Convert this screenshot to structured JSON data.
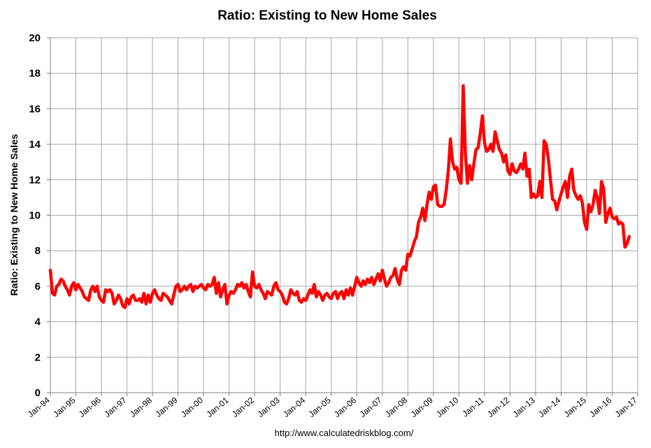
{
  "chart_data": {
    "type": "line",
    "title": "Ratio: Existing to New Home Sales",
    "ylabel": "Ratio: Existing to New Home Sales",
    "xlabel": "",
    "ylim": [
      0,
      20
    ],
    "yticks": [
      "0",
      "2",
      "4",
      "6",
      "8",
      "10",
      "12",
      "14",
      "16",
      "18",
      "20"
    ],
    "xlim": [
      "1994-01",
      "2017-01"
    ],
    "xticks": [
      "Jan-94",
      "Jan-95",
      "Jan-96",
      "Jan-97",
      "Jan-98",
      "Jan-99",
      "Jan-00",
      "Jan-01",
      "Jan-02",
      "Jan-03",
      "Jan-04",
      "Jan-05",
      "Jan-06",
      "Jan-07",
      "Jan-08",
      "Jan-09",
      "Jan-10",
      "Jan-11",
      "Jan-12",
      "Jan-13",
      "Jan-14",
      "Jan-15",
      "Jan-16",
      "Jan-17"
    ],
    "grid": true,
    "legend": "none",
    "series": [
      {
        "color": "#ff0000",
        "points": [
          [
            "1994-01",
            6.9
          ],
          [
            "1994-02",
            5.6
          ],
          [
            "1994-03",
            5.5
          ],
          [
            "1994-04",
            6.0
          ],
          [
            "1994-05",
            6.1
          ],
          [
            "1994-06",
            6.4
          ],
          [
            "1994-07",
            6.3
          ],
          [
            "1994-08",
            6.0
          ],
          [
            "1994-09",
            5.8
          ],
          [
            "1994-10",
            5.5
          ],
          [
            "1994-11",
            6.0
          ],
          [
            "1994-12",
            6.2
          ],
          [
            "1995-01",
            5.8
          ],
          [
            "1995-02",
            6.1
          ],
          [
            "1995-03",
            5.9
          ],
          [
            "1995-04",
            5.7
          ],
          [
            "1995-05",
            5.4
          ],
          [
            "1995-06",
            5.3
          ],
          [
            "1995-07",
            5.2
          ],
          [
            "1995-08",
            5.8
          ],
          [
            "1995-09",
            6.0
          ],
          [
            "1995-10",
            5.7
          ],
          [
            "1995-11",
            6.0
          ],
          [
            "1995-12",
            5.4
          ],
          [
            "1996-01",
            5.2
          ],
          [
            "1996-02",
            5.1
          ],
          [
            "1996-03",
            5.8
          ],
          [
            "1996-04",
            5.7
          ],
          [
            "1996-05",
            5.8
          ],
          [
            "1996-06",
            5.6
          ],
          [
            "1996-07",
            5.0
          ],
          [
            "1996-08",
            5.2
          ],
          [
            "1996-09",
            5.5
          ],
          [
            "1996-10",
            5.3
          ],
          [
            "1996-11",
            4.9
          ],
          [
            "1996-12",
            4.8
          ],
          [
            "1997-01",
            5.3
          ],
          [
            "1997-02",
            5.0
          ],
          [
            "1997-03",
            5.4
          ],
          [
            "1997-04",
            5.5
          ],
          [
            "1997-05",
            5.2
          ],
          [
            "1997-06",
            5.2
          ],
          [
            "1997-07",
            5.3
          ],
          [
            "1997-08",
            5.1
          ],
          [
            "1997-09",
            5.6
          ],
          [
            "1997-10",
            5.0
          ],
          [
            "1997-11",
            5.5
          ],
          [
            "1997-12",
            5.1
          ],
          [
            "1998-01",
            5.6
          ],
          [
            "1998-02",
            5.8
          ],
          [
            "1998-03",
            5.5
          ],
          [
            "1998-04",
            5.3
          ],
          [
            "1998-05",
            5.2
          ],
          [
            "1998-06",
            5.6
          ],
          [
            "1998-07",
            5.5
          ],
          [
            "1998-08",
            5.4
          ],
          [
            "1998-09",
            5.2
          ],
          [
            "1998-10",
            5.0
          ],
          [
            "1998-11",
            5.5
          ],
          [
            "1998-12",
            6.0
          ],
          [
            "1999-01",
            6.1
          ],
          [
            "1999-02",
            5.7
          ],
          [
            "1999-03",
            5.8
          ],
          [
            "1999-04",
            6.0
          ],
          [
            "1999-05",
            5.8
          ],
          [
            "1999-06",
            6.0
          ],
          [
            "1999-07",
            6.1
          ],
          [
            "1999-08",
            5.7
          ],
          [
            "1999-09",
            6.0
          ],
          [
            "1999-10",
            5.9
          ],
          [
            "1999-11",
            6.0
          ],
          [
            "1999-12",
            6.1
          ],
          [
            "2000-01",
            5.9
          ],
          [
            "2000-02",
            5.8
          ],
          [
            "2000-03",
            6.1
          ],
          [
            "2000-04",
            6.0
          ],
          [
            "2000-05",
            6.1
          ],
          [
            "2000-06",
            6.5
          ],
          [
            "2000-07",
            5.6
          ],
          [
            "2000-08",
            6.2
          ],
          [
            "2000-09",
            5.4
          ],
          [
            "2000-10",
            5.8
          ],
          [
            "2000-11",
            6.1
          ],
          [
            "2000-12",
            5.0
          ],
          [
            "2001-01",
            5.5
          ],
          [
            "2001-02",
            5.7
          ],
          [
            "2001-03",
            5.6
          ],
          [
            "2001-04",
            5.8
          ],
          [
            "2001-05",
            6.1
          ],
          [
            "2001-06",
            6.0
          ],
          [
            "2001-07",
            6.2
          ],
          [
            "2001-08",
            5.9
          ],
          [
            "2001-09",
            6.1
          ],
          [
            "2001-10",
            5.7
          ],
          [
            "2001-11",
            5.4
          ],
          [
            "2001-12",
            6.8
          ],
          [
            "2002-01",
            6.0
          ],
          [
            "2002-02",
            5.9
          ],
          [
            "2002-03",
            6.1
          ],
          [
            "2002-04",
            5.8
          ],
          [
            "2002-05",
            5.6
          ],
          [
            "2002-06",
            5.3
          ],
          [
            "2002-07",
            5.7
          ],
          [
            "2002-08",
            5.6
          ],
          [
            "2002-09",
            5.5
          ],
          [
            "2002-10",
            6.0
          ],
          [
            "2002-11",
            6.2
          ],
          [
            "2002-12",
            5.8
          ],
          [
            "2003-01",
            5.7
          ],
          [
            "2003-02",
            5.5
          ],
          [
            "2003-03",
            5.1
          ],
          [
            "2003-04",
            5.0
          ],
          [
            "2003-05",
            5.3
          ],
          [
            "2003-06",
            5.8
          ],
          [
            "2003-07",
            5.6
          ],
          [
            "2003-08",
            5.5
          ],
          [
            "2003-09",
            5.7
          ],
          [
            "2003-10",
            5.2
          ],
          [
            "2003-11",
            5.1
          ],
          [
            "2003-12",
            5.3
          ],
          [
            "2004-01",
            5.2
          ],
          [
            "2004-02",
            5.5
          ],
          [
            "2004-03",
            5.8
          ],
          [
            "2004-04",
            5.6
          ],
          [
            "2004-05",
            6.1
          ],
          [
            "2004-06",
            5.4
          ],
          [
            "2004-07",
            5.7
          ],
          [
            "2004-08",
            5.5
          ],
          [
            "2004-09",
            5.2
          ],
          [
            "2004-10",
            5.5
          ],
          [
            "2004-11",
            5.6
          ],
          [
            "2004-12",
            5.4
          ],
          [
            "2005-01",
            5.3
          ],
          [
            "2005-02",
            5.6
          ],
          [
            "2005-03",
            5.7
          ],
          [
            "2005-04",
            5.3
          ],
          [
            "2005-05",
            5.6
          ],
          [
            "2005-06",
            5.7
          ],
          [
            "2005-07",
            5.3
          ],
          [
            "2005-08",
            5.8
          ],
          [
            "2005-09",
            5.5
          ],
          [
            "2005-10",
            5.9
          ],
          [
            "2005-11",
            5.5
          ],
          [
            "2005-12",
            6.0
          ],
          [
            "2006-01",
            6.5
          ],
          [
            "2006-02",
            6.2
          ],
          [
            "2006-03",
            6.0
          ],
          [
            "2006-04",
            6.3
          ],
          [
            "2006-05",
            6.1
          ],
          [
            "2006-06",
            6.4
          ],
          [
            "2006-07",
            6.2
          ],
          [
            "2006-08",
            6.5
          ],
          [
            "2006-09",
            6.1
          ],
          [
            "2006-10",
            6.4
          ],
          [
            "2006-11",
            6.7
          ],
          [
            "2006-12",
            6.3
          ],
          [
            "2007-01",
            6.9
          ],
          [
            "2007-02",
            6.4
          ],
          [
            "2007-03",
            6.0
          ],
          [
            "2007-04",
            6.2
          ],
          [
            "2007-05",
            6.5
          ],
          [
            "2007-06",
            6.6
          ],
          [
            "2007-07",
            7.0
          ],
          [
            "2007-08",
            6.4
          ],
          [
            "2007-09",
            6.1
          ],
          [
            "2007-10",
            6.9
          ],
          [
            "2007-11",
            7.1
          ],
          [
            "2007-12",
            6.9
          ],
          [
            "2008-01",
            7.8
          ],
          [
            "2008-02",
            7.7
          ],
          [
            "2008-03",
            8.1
          ],
          [
            "2008-04",
            8.5
          ],
          [
            "2008-05",
            8.8
          ],
          [
            "2008-06",
            9.6
          ],
          [
            "2008-07",
            9.9
          ],
          [
            "2008-08",
            10.4
          ],
          [
            "2008-09",
            9.7
          ],
          [
            "2008-10",
            10.6
          ],
          [
            "2008-11",
            11.3
          ],
          [
            "2008-12",
            10.9
          ],
          [
            "2009-01",
            11.6
          ],
          [
            "2009-02",
            11.7
          ],
          [
            "2009-03",
            10.6
          ],
          [
            "2009-04",
            10.5
          ],
          [
            "2009-05",
            10.5
          ],
          [
            "2009-06",
            10.6
          ],
          [
            "2009-07",
            11.4
          ],
          [
            "2009-08",
            12.5
          ],
          [
            "2009-09",
            14.3
          ],
          [
            "2009-10",
            13.0
          ],
          [
            "2009-11",
            12.6
          ],
          [
            "2009-12",
            12.7
          ],
          [
            "2010-01",
            12.0
          ],
          [
            "2010-02",
            11.8
          ],
          [
            "2010-03",
            17.3
          ],
          [
            "2010-04",
            13.5
          ],
          [
            "2010-05",
            11.8
          ],
          [
            "2010-06",
            12.8
          ],
          [
            "2010-07",
            12.0
          ],
          [
            "2010-08",
            12.9
          ],
          [
            "2010-09",
            13.7
          ],
          [
            "2010-10",
            13.8
          ],
          [
            "2010-11",
            14.6
          ],
          [
            "2010-12",
            15.6
          ],
          [
            "2011-01",
            14.1
          ],
          [
            "2011-02",
            13.6
          ],
          [
            "2011-03",
            13.7
          ],
          [
            "2011-04",
            14.0
          ],
          [
            "2011-05",
            13.6
          ],
          [
            "2011-06",
            14.7
          ],
          [
            "2011-07",
            14.2
          ],
          [
            "2011-08",
            13.7
          ],
          [
            "2011-09",
            13.5
          ],
          [
            "2011-10",
            13.0
          ],
          [
            "2011-11",
            13.4
          ],
          [
            "2011-12",
            12.5
          ],
          [
            "2012-01",
            12.3
          ],
          [
            "2012-02",
            12.9
          ],
          [
            "2012-03",
            12.5
          ],
          [
            "2012-04",
            12.4
          ],
          [
            "2012-05",
            12.6
          ],
          [
            "2012-06",
            12.9
          ],
          [
            "2012-07",
            12.6
          ],
          [
            "2012-08",
            13.5
          ],
          [
            "2012-09",
            12.2
          ],
          [
            "2012-10",
            12.6
          ],
          [
            "2012-11",
            11.0
          ],
          [
            "2012-12",
            11.2
          ],
          [
            "2013-01",
            11.0
          ],
          [
            "2013-02",
            11.1
          ],
          [
            "2013-03",
            11.9
          ],
          [
            "2013-04",
            11.0
          ],
          [
            "2013-05",
            14.2
          ],
          [
            "2013-06",
            14.0
          ],
          [
            "2013-07",
            13.2
          ],
          [
            "2013-08",
            12.0
          ],
          [
            "2013-09",
            10.9
          ],
          [
            "2013-10",
            10.8
          ],
          [
            "2013-11",
            10.3
          ],
          [
            "2013-12",
            10.8
          ],
          [
            "2014-01",
            11.2
          ],
          [
            "2014-02",
            11.6
          ],
          [
            "2014-03",
            11.9
          ],
          [
            "2014-04",
            11.0
          ],
          [
            "2014-05",
            12.2
          ],
          [
            "2014-06",
            12.6
          ],
          [
            "2014-07",
            11.4
          ],
          [
            "2014-08",
            11.1
          ],
          [
            "2014-09",
            10.9
          ],
          [
            "2014-10",
            11.1
          ],
          [
            "2014-11",
            10.7
          ],
          [
            "2014-12",
            9.6
          ],
          [
            "2015-01",
            9.2
          ],
          [
            "2015-02",
            10.6
          ],
          [
            "2015-03",
            10.2
          ],
          [
            "2015-04",
            10.6
          ],
          [
            "2015-05",
            11.4
          ],
          [
            "2015-06",
            11.0
          ],
          [
            "2015-07",
            10.1
          ],
          [
            "2015-08",
            11.9
          ],
          [
            "2015-09",
            11.5
          ],
          [
            "2015-10",
            9.6
          ],
          [
            "2015-11",
            10.1
          ],
          [
            "2015-12",
            10.4
          ],
          [
            "2016-01",
            9.9
          ],
          [
            "2016-02",
            9.8
          ],
          [
            "2016-03",
            9.9
          ],
          [
            "2016-04",
            9.5
          ],
          [
            "2016-05",
            9.6
          ],
          [
            "2016-06",
            9.5
          ],
          [
            "2016-07",
            8.2
          ],
          [
            "2016-08",
            8.4
          ],
          [
            "2016-09",
            8.8
          ]
        ]
      }
    ]
  },
  "footer": {
    "url": "http://www.calculatedriskblog.com/"
  }
}
